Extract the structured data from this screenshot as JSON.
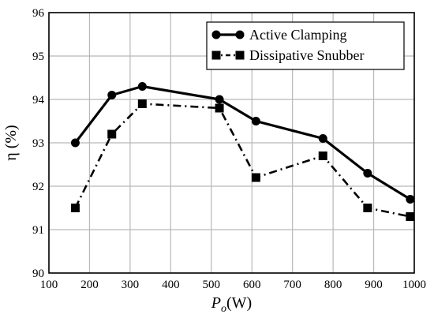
{
  "chart_data": {
    "type": "line",
    "xlabel": {
      "main": "P",
      "sub": "o",
      "unit": "(W)"
    },
    "ylabel": "η (%)",
    "xlim": [
      100,
      1000
    ],
    "ylim": [
      90,
      96
    ],
    "xticks": [
      100,
      200,
      300,
      400,
      500,
      600,
      700,
      800,
      900,
      1000
    ],
    "yticks": [
      90,
      91,
      92,
      93,
      94,
      95,
      96
    ],
    "grid": true,
    "legend_position": "top-right",
    "series": [
      {
        "name": "Active Clamping",
        "marker": "circle",
        "line_style": "solid",
        "color": "#000000",
        "x": [
          165,
          255,
          330,
          520,
          610,
          775,
          885,
          990
        ],
        "y": [
          93.0,
          94.1,
          94.3,
          94.0,
          93.5,
          93.1,
          92.3,
          91.7
        ]
      },
      {
        "name": "Dissipative Snubber",
        "marker": "square",
        "line_style": "dash-dot",
        "color": "#000000",
        "x": [
          165,
          255,
          330,
          520,
          610,
          775,
          885,
          990
        ],
        "y": [
          91.5,
          93.2,
          93.9,
          93.8,
          92.2,
          92.7,
          91.5,
          91.3
        ]
      }
    ]
  }
}
